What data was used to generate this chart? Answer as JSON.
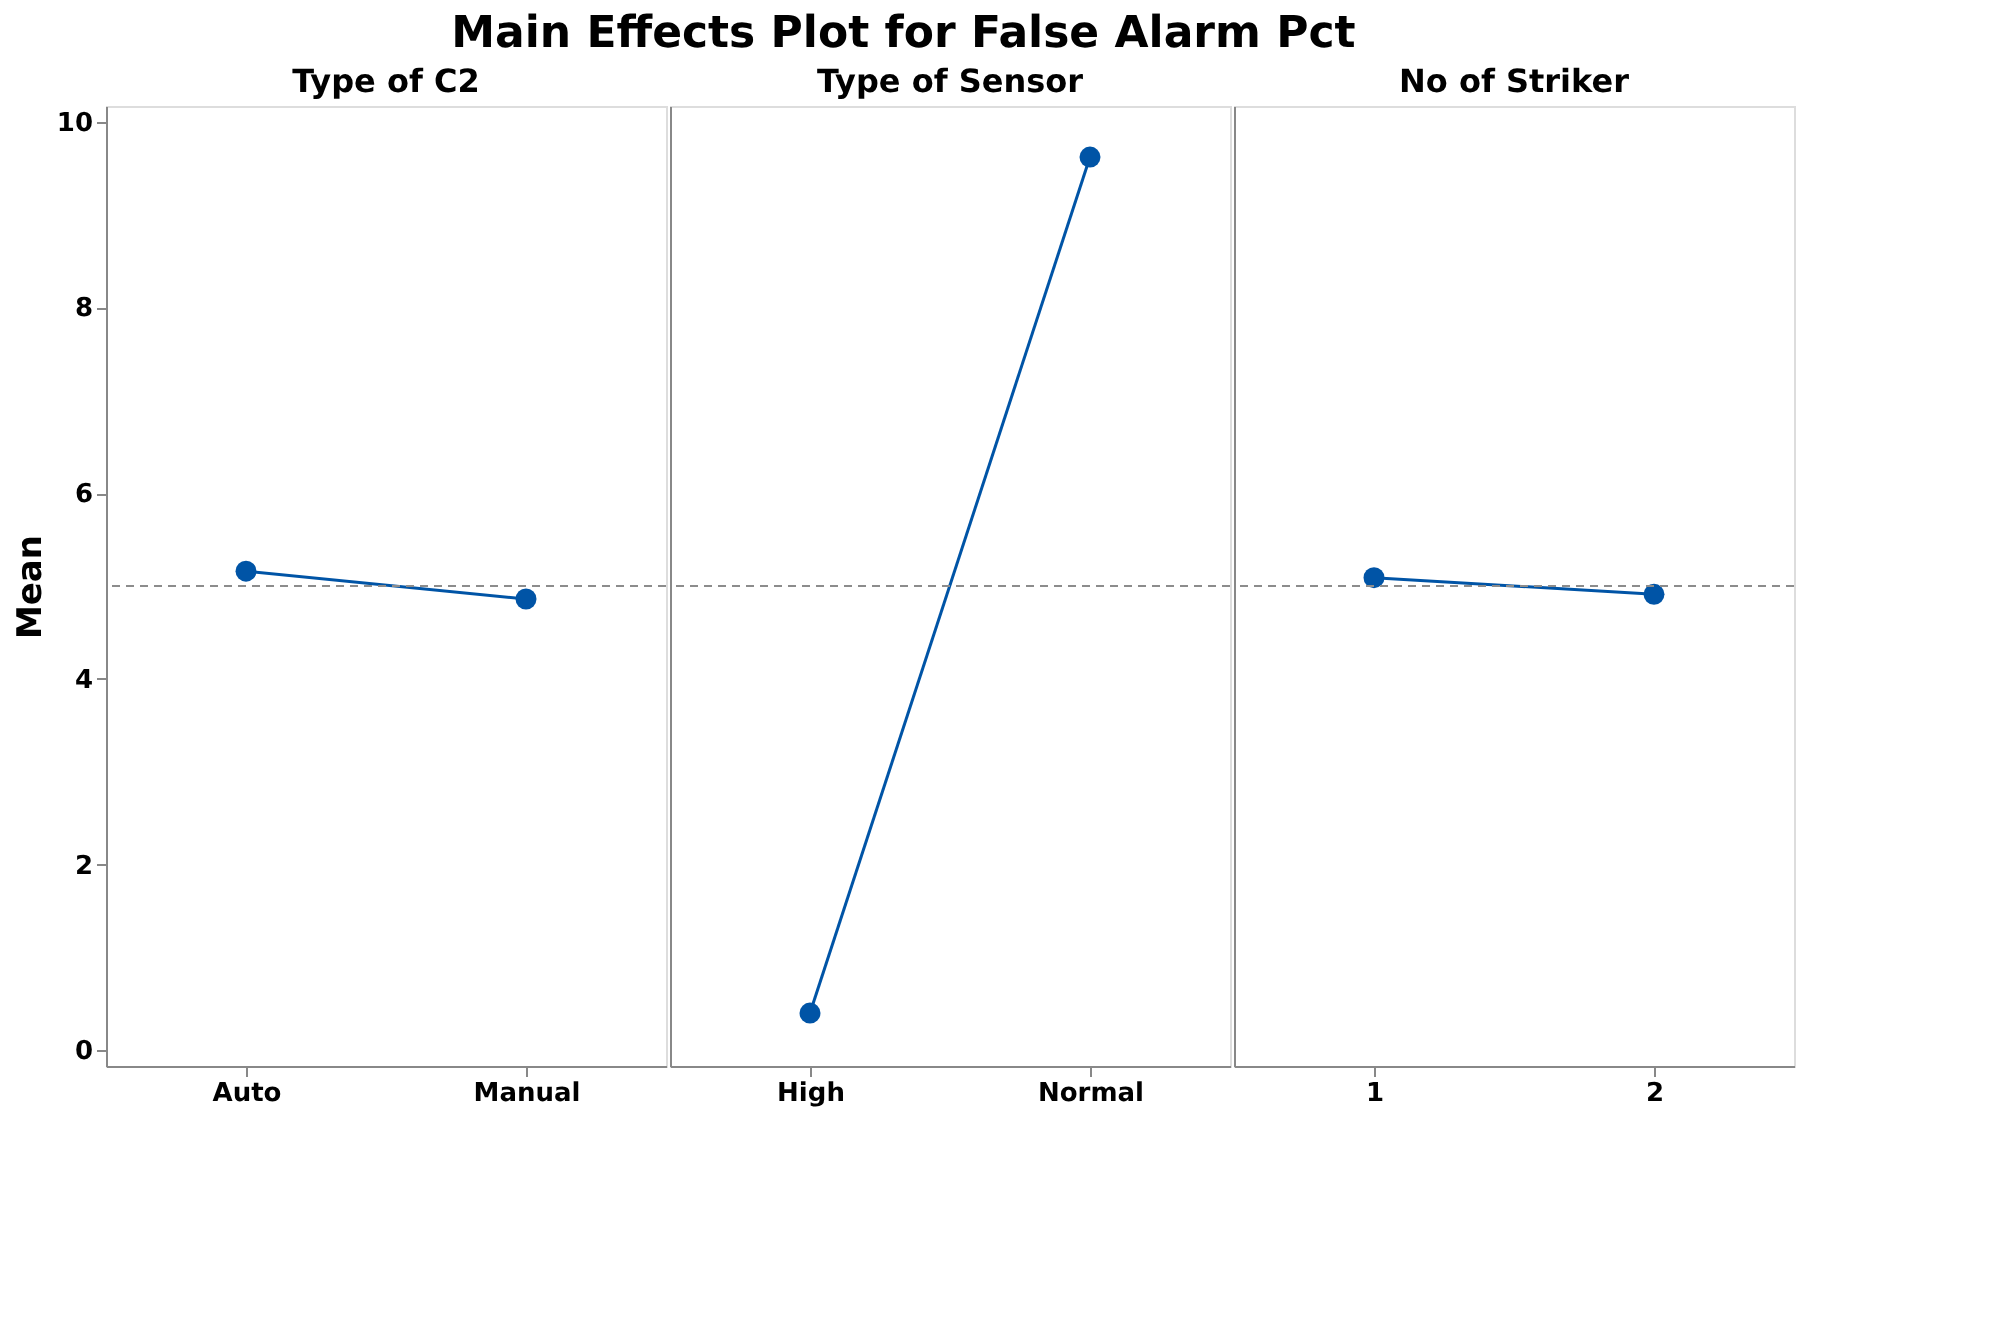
{
  "chart_data": [
    {
      "type": "line",
      "title": "Main Effects Plot for False Alarm Pct",
      "subtitle": "Type of C2",
      "ylabel": "Mean",
      "categories": [
        "Auto",
        "Manual"
      ],
      "series": [
        {
          "color": "#0054a6",
          "values": [
            5.16,
            4.86
          ]
        }
      ],
      "ylim": [
        -0.17,
        10.17
      ],
      "yticks": [
        0,
        2,
        4,
        6,
        8,
        10
      ],
      "ref_lines": [
        {
          "axis": "y",
          "value": 5.0,
          "color": "#8c8c8c",
          "line_style": "dashed"
        }
      ],
      "marker": "circle",
      "line_style": "solid",
      "grid": false
    },
    {
      "type": "line",
      "subtitle": "Type of Sensor",
      "categories": [
        "High",
        "Normal"
      ],
      "series": [
        {
          "color": "#0054a6",
          "values": [
            0.4,
            9.62
          ]
        }
      ],
      "ylim": [
        -0.17,
        10.17
      ],
      "tick_labels": "x",
      "ref_lines": [
        {
          "axis": "y",
          "value": 5.0,
          "color": "#8c8c8c",
          "line_style": "dashed"
        }
      ],
      "marker": "circle",
      "line_style": "solid",
      "grid": false
    },
    {
      "type": "line",
      "subtitle": "No of Striker",
      "categories": [
        "1",
        "2"
      ],
      "series": [
        {
          "color": "#0054a6",
          "values": [
            5.09,
            4.91
          ]
        }
      ],
      "ylim": [
        -0.17,
        10.17
      ],
      "tick_labels": "x",
      "ref_lines": [
        {
          "axis": "y",
          "value": 5.0,
          "color": "#8c8c8c",
          "line_style": "dashed"
        }
      ],
      "marker": "circle",
      "line_style": "solid",
      "grid": false
    }
  ]
}
